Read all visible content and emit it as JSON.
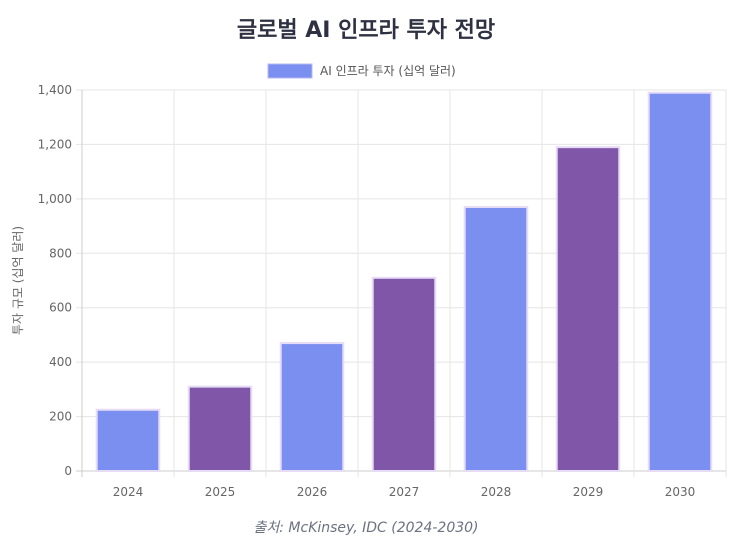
{
  "chart_data": {
    "type": "bar",
    "title": "글로벌 AI 인프라 투자 전망",
    "source": "출처: McKinsey, IDC (2024-2030)",
    "categories": [
      "2024",
      "2025",
      "2026",
      "2027",
      "2028",
      "2029",
      "2030"
    ],
    "series": [
      {
        "name": "AI 인프라 투자 (십억 달러)",
        "values": [
          225,
          310,
          470,
          710,
          970,
          1190,
          1390
        ]
      }
    ],
    "xlabel": "",
    "ylabel": "투자 규모 (십억 달러)",
    "ylim": [
      0,
      1400
    ],
    "yticks": [
      "0",
      "200",
      "400",
      "600",
      "800",
      "1,000",
      "1,200",
      "1,400"
    ],
    "grid": true,
    "legend_position": "top",
    "colors": {
      "bar_a": "#7b8ff0",
      "bar_b": "#8057a8",
      "bar_border": "#e6dcf5",
      "grid": "#e5e5e5",
      "axis": "#cccccc",
      "legend_swatch": "#7b8ff0",
      "legend_swatch_border": "#b6b8f2"
    }
  }
}
